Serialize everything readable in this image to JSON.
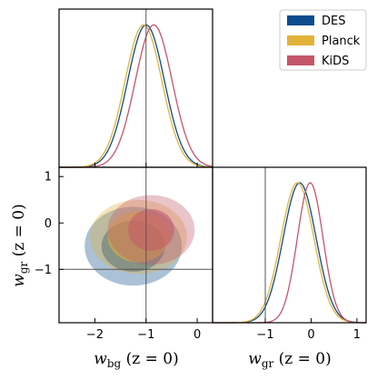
{
  "chart_data": {
    "type": "triangle_corner_plot",
    "series": [
      {
        "name": "DES",
        "color": "#0b4c8c",
        "wbg": {
          "mean": -1.0,
          "sigma": 0.36
        },
        "wgr": {
          "mean": -0.25,
          "sigma": 0.36
        },
        "contour_2d": {
          "cx": -1.25,
          "cy": -0.5,
          "r68": [
            0.62,
            0.55
          ],
          "r95": [
            0.95,
            0.85
          ]
        }
      },
      {
        "name": "Planck",
        "color": "#e2b33a",
        "wbg": {
          "mean": -1.05,
          "sigma": 0.36
        },
        "wgr": {
          "mean": -0.3,
          "sigma": 0.36
        },
        "contour_2d": {
          "cx": -1.15,
          "cy": -0.3,
          "r68": [
            0.6,
            0.55
          ],
          "r95": [
            0.95,
            0.8
          ]
        }
      },
      {
        "name": "KiDS",
        "color": "#c4566a",
        "wbg": {
          "mean": -0.85,
          "sigma": 0.36
        },
        "wgr": {
          "mean": -0.02,
          "sigma": 0.28
        },
        "contour_2d": {
          "cx": -0.9,
          "cy": -0.15,
          "r68": [
            0.45,
            0.45
          ],
          "r95": [
            0.85,
            0.75
          ]
        }
      }
    ],
    "panels": {
      "wbg_range": [
        -2.7,
        0.3
      ],
      "wgr_range": [
        -2.15,
        1.2
      ],
      "wbg_ticks": [
        -2,
        -1,
        0
      ],
      "wgr_ticks": [
        -1,
        0,
        1
      ],
      "reference_lines": {
        "wbg": -1,
        "wgr": -1
      }
    },
    "xlabel_left": {
      "symbol": "w",
      "sub": "bg",
      "arg": "(z = 0)"
    },
    "ylabel_2d": {
      "symbol": "w",
      "sub": "gr",
      "arg": "(z = 0)"
    },
    "xlabel_right": {
      "symbol": "w",
      "sub": "gr",
      "arg": "(z = 0)"
    },
    "tick_labels": {
      "m2": "−2",
      "m1": "−1",
      "zero": "0",
      "one": "1"
    },
    "legend": {
      "position": "top-right"
    }
  }
}
